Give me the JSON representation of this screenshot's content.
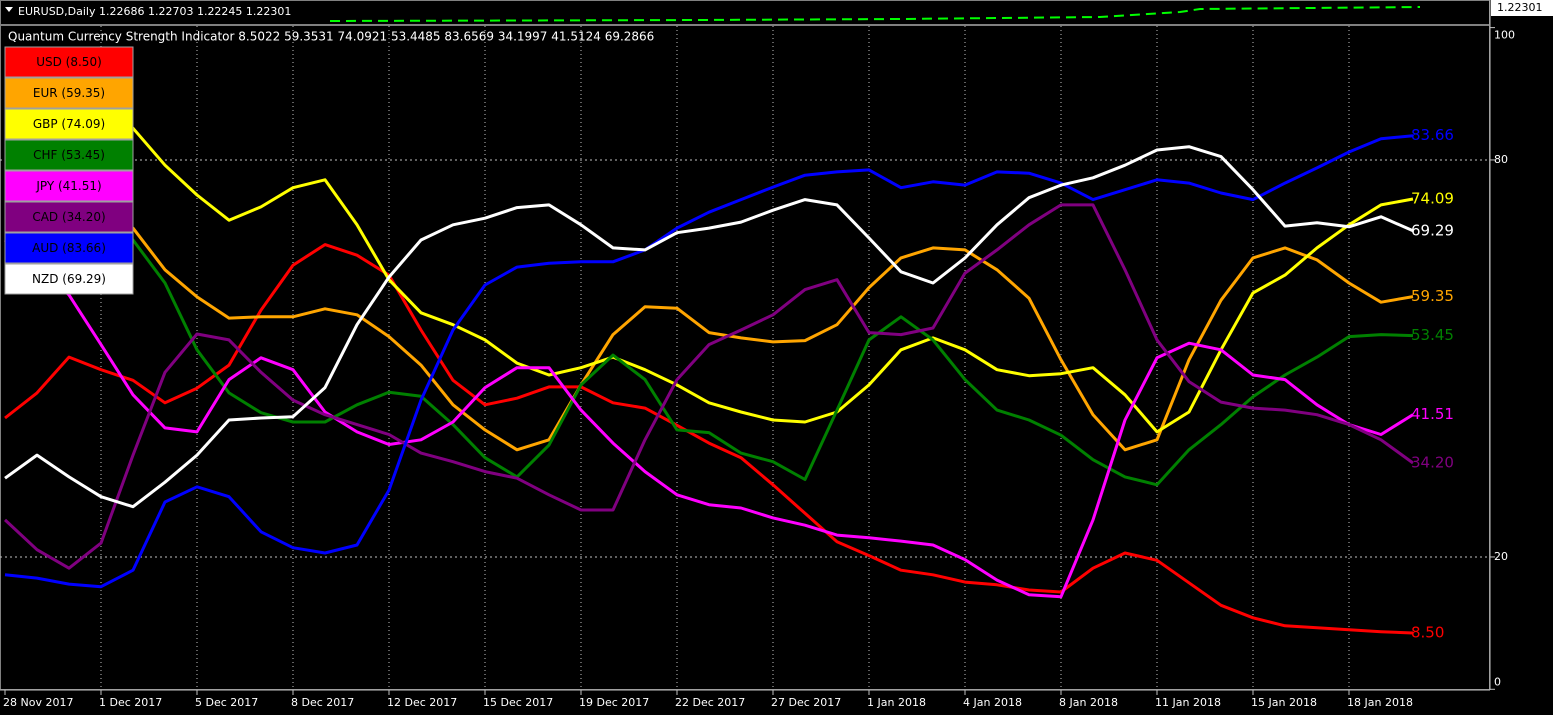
{
  "price_window": {
    "title": "EURUSD,Daily  1.22686 1.22703 1.22245 1.22301",
    "price_label": "1.22301"
  },
  "chart_data": {
    "type": "line",
    "title": "Quantum Currency Strength Indicator 8.5022 59.3531 74.0921 53.4485 83.6569 34.1997 41.5124 69.2866",
    "categories": [
      "28 Nov 2017",
      null,
      null,
      "1 Dec 2017",
      null,
      null,
      "5 Dec 2017",
      null,
      null,
      "8 Dec 2017",
      null,
      null,
      "12 Dec 2017",
      null,
      null,
      "15 Dec 2017",
      null,
      null,
      "19 Dec 2017",
      null,
      null,
      "22 Dec 2017",
      null,
      null,
      "27 Dec 2017",
      null,
      null,
      "1 Jan 2018",
      null,
      null,
      "4 Jan 2018",
      null,
      null,
      "8 Jan 2018",
      null,
      null,
      "11 Jan 2018",
      null,
      null,
      "15 Jan 2018",
      null,
      null,
      "18 Jan 2018",
      null,
      null
    ],
    "ylim": [
      0,
      100
    ],
    "yticks": [
      0,
      20,
      80,
      100
    ],
    "grid": true,
    "legend": "top-left",
    "series": [
      {
        "name": "USD (8.50)",
        "color": "#ff0000",
        "values": [
          41.0,
          44.8,
          50.2,
          48.3,
          46.7,
          43.3,
          45.5,
          49.0,
          57.3,
          64.1,
          67.2,
          65.6,
          62.6,
          54.3,
          46.7,
          43.0,
          44.0,
          45.7,
          45.7,
          43.3,
          42.5,
          39.9,
          37.2,
          35.0,
          30.9,
          26.6,
          22.3,
          20.2,
          18.0,
          17.3,
          16.2,
          15.8,
          15.0,
          14.7,
          18.3,
          20.6,
          19.5,
          16.1,
          12.7,
          10.8,
          9.6,
          9.3,
          9.0,
          8.7,
          8.5022
        ],
        "value_labels": [
          null,
          null,
          null,
          null,
          null,
          null,
          null,
          null,
          null,
          null,
          null,
          null,
          null,
          null,
          null,
          null,
          null,
          null,
          null,
          null,
          null,
          null,
          null,
          null,
          null,
          null,
          null,
          null,
          null,
          null,
          null,
          null,
          null,
          null,
          null,
          null,
          null,
          null,
          null,
          null,
          null,
          null,
          null,
          null,
          "8.50"
        ]
      },
      {
        "name": "EUR (59.35)",
        "color": "#ffa500",
        "values": [
          75.5,
          74.0,
          72.5,
          71.7,
          69.7,
          63.4,
          59.3,
          56.1,
          56.3,
          56.3,
          57.5,
          56.6,
          53.3,
          49.0,
          43.0,
          39.2,
          36.2,
          37.7,
          46.0,
          53.6,
          57.8,
          57.6,
          53.9,
          53.1,
          52.5,
          52.7,
          55.1,
          60.7,
          65.2,
          66.7,
          66.4,
          63.4,
          59.1,
          49.8,
          41.5,
          36.2,
          37.7,
          49.8,
          58.8,
          65.2,
          66.7,
          64.9,
          61.4,
          58.5,
          59.3531
        ],
        "value_labels": [
          null,
          null,
          null,
          null,
          null,
          null,
          null,
          null,
          null,
          null,
          null,
          null,
          null,
          null,
          null,
          null,
          null,
          null,
          null,
          null,
          null,
          null,
          null,
          null,
          null,
          null,
          null,
          null,
          null,
          null,
          null,
          null,
          null,
          null,
          null,
          null,
          null,
          null,
          null,
          null,
          null,
          null,
          null,
          null,
          "59.35"
        ]
      },
      {
        "name": "GBP (74.09)",
        "color": "#ffff00",
        "values": [
          88.3,
          87.9,
          87.3,
          86.4,
          84.8,
          79.2,
          74.7,
          70.9,
          72.9,
          75.8,
          77.0,
          70.2,
          61.9,
          56.9,
          55.1,
          52.8,
          49.3,
          47.5,
          48.6,
          50.2,
          48.3,
          46.0,
          43.3,
          41.9,
          40.7,
          40.4,
          41.9,
          46.0,
          51.3,
          53.1,
          51.3,
          48.3,
          47.4,
          47.7,
          48.6,
          44.5,
          38.9,
          41.9,
          51.3,
          59.9,
          62.6,
          66.7,
          70.2,
          73.2,
          74.0921
        ],
        "value_labels": [
          null,
          null,
          null,
          null,
          null,
          null,
          null,
          null,
          null,
          null,
          null,
          null,
          null,
          null,
          null,
          null,
          null,
          null,
          null,
          null,
          null,
          null,
          null,
          null,
          null,
          null,
          null,
          null,
          null,
          null,
          null,
          null,
          null,
          null,
          null,
          null,
          null,
          null,
          null,
          null,
          null,
          null,
          null,
          null,
          "74.09"
        ]
      },
      {
        "name": "CHF (53.45)",
        "color": "#008000",
        "values": [
          72.4,
          71.7,
          70.9,
          69.7,
          67.9,
          61.4,
          51.3,
          44.8,
          41.8,
          40.4,
          40.4,
          43.0,
          44.9,
          44.3,
          40.0,
          35.0,
          32.1,
          36.9,
          46.0,
          50.5,
          46.8,
          39.2,
          38.8,
          35.7,
          34.4,
          31.7,
          42.2,
          52.8,
          56.3,
          52.8,
          46.8,
          42.2,
          40.7,
          38.4,
          34.7,
          32.1,
          30.9,
          36.2,
          40.0,
          44.2,
          47.5,
          50.2,
          53.3,
          53.6,
          53.4485
        ],
        "value_labels": [
          null,
          null,
          null,
          null,
          null,
          null,
          null,
          null,
          null,
          null,
          null,
          null,
          null,
          null,
          null,
          null,
          null,
          null,
          null,
          null,
          null,
          null,
          null,
          null,
          null,
          null,
          null,
          null,
          null,
          null,
          null,
          null,
          null,
          null,
          null,
          null,
          null,
          null,
          null,
          null,
          null,
          null,
          null,
          null,
          "53.45"
        ]
      },
      {
        "name": "JPY (41.51)",
        "color": "#ff00ff",
        "values": [
          67.9,
          64.1,
          59.6,
          52.1,
          44.5,
          39.5,
          38.9,
          46.8,
          50.1,
          48.3,
          41.9,
          38.9,
          37.0,
          37.7,
          40.4,
          45.6,
          48.6,
          48.6,
          42.2,
          37.2,
          32.9,
          29.4,
          27.9,
          27.4,
          25.9,
          24.8,
          23.3,
          22.9,
          22.4,
          21.8,
          19.6,
          16.5,
          14.3,
          14.0,
          25.6,
          40.7,
          50.1,
          52.3,
          51.3,
          47.5,
          46.8,
          43.0,
          40.0,
          38.5,
          41.5124
        ],
        "value_labels": [
          null,
          null,
          null,
          null,
          null,
          null,
          null,
          null,
          null,
          null,
          null,
          null,
          null,
          null,
          null,
          null,
          null,
          null,
          null,
          null,
          null,
          null,
          null,
          null,
          null,
          null,
          null,
          null,
          null,
          null,
          null,
          null,
          null,
          null,
          null,
          null,
          null,
          null,
          null,
          null,
          null,
          null,
          null,
          null,
          "41.51"
        ]
      },
      {
        "name": "CAD (34.20)",
        "color": "#800080",
        "values": [
          25.6,
          21.1,
          18.3,
          22.1,
          35.4,
          47.9,
          53.7,
          52.8,
          47.9,
          43.7,
          41.5,
          40.0,
          38.5,
          35.7,
          34.4,
          32.9,
          31.9,
          29.4,
          27.1,
          27.1,
          37.7,
          46.8,
          52.1,
          54.3,
          56.6,
          60.4,
          61.9,
          53.9,
          53.6,
          54.6,
          62.9,
          66.4,
          70.2,
          73.2,
          73.2,
          63.4,
          52.8,
          46.5,
          43.4,
          42.5,
          42.2,
          41.5,
          40.0,
          37.7,
          34.1997
        ],
        "value_labels": [
          null,
          null,
          null,
          null,
          null,
          null,
          null,
          null,
          null,
          null,
          null,
          null,
          null,
          null,
          null,
          null,
          null,
          null,
          null,
          null,
          null,
          null,
          null,
          null,
          null,
          null,
          null,
          null,
          null,
          null,
          null,
          null,
          null,
          null,
          null,
          null,
          null,
          null,
          null,
          null,
          null,
          null,
          null,
          null,
          "34.20"
        ]
      },
      {
        "name": "AUD (83.66)",
        "color": "#0000ff",
        "values": [
          17.3,
          16.8,
          15.9,
          15.5,
          18.0,
          28.3,
          30.6,
          29.1,
          23.8,
          21.4,
          20.6,
          21.8,
          30.1,
          43.7,
          54.3,
          61.1,
          63.8,
          64.4,
          64.6,
          64.6,
          66.4,
          69.7,
          72.1,
          74.0,
          75.9,
          77.7,
          78.2,
          78.5,
          75.8,
          76.7,
          76.2,
          78.2,
          78.0,
          76.5,
          74.0,
          75.5,
          77.0,
          76.5,
          75.0,
          74.0,
          76.5,
          78.8,
          81.2,
          83.2,
          83.6569
        ],
        "value_labels": [
          null,
          null,
          null,
          null,
          null,
          null,
          null,
          null,
          null,
          null,
          null,
          null,
          null,
          null,
          null,
          null,
          null,
          null,
          null,
          null,
          null,
          null,
          null,
          null,
          null,
          null,
          null,
          null,
          null,
          null,
          null,
          null,
          null,
          null,
          null,
          null,
          null,
          null,
          null,
          null,
          null,
          null,
          null,
          null,
          "83.66"
        ]
      },
      {
        "name": "NZD (69.29)",
        "color": "#ffffff",
        "values": [
          31.9,
          35.4,
          32.1,
          29.1,
          27.6,
          31.3,
          35.4,
          40.7,
          41.0,
          41.2,
          45.6,
          55.1,
          62.3,
          67.9,
          70.2,
          71.2,
          72.8,
          73.2,
          70.2,
          66.7,
          66.4,
          69.0,
          69.7,
          70.6,
          72.4,
          74.0,
          73.2,
          68.2,
          63.1,
          61.4,
          65.2,
          70.2,
          74.3,
          76.2,
          77.3,
          79.2,
          81.5,
          82.0,
          80.5,
          75.5,
          70.0,
          70.5,
          69.9,
          71.4,
          69.2866
        ],
        "value_labels": [
          null,
          null,
          null,
          null,
          null,
          null,
          null,
          null,
          null,
          null,
          null,
          null,
          null,
          null,
          null,
          null,
          null,
          null,
          null,
          null,
          null,
          null,
          null,
          null,
          null,
          null,
          null,
          null,
          null,
          null,
          null,
          null,
          null,
          null,
          null,
          null,
          null,
          null,
          null,
          null,
          null,
          null,
          null,
          null,
          "69.29"
        ]
      }
    ]
  }
}
